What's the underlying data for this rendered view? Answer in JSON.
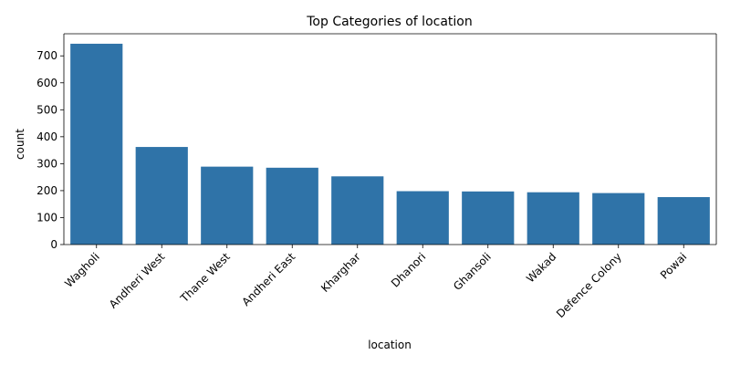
{
  "chart_data": {
    "type": "bar",
    "title": "Top Categories of location",
    "xlabel": "location",
    "ylabel": "count",
    "categories": [
      "Wagholi",
      "Andheri West",
      "Thane West",
      "Andheri East",
      "Kharghar",
      "Dhanori",
      "Ghansoli",
      "Wakad",
      "Defence Colony",
      "Powai"
    ],
    "values": [
      745,
      362,
      289,
      285,
      253,
      198,
      197,
      194,
      191,
      176
    ],
    "ylim": [
      0,
      782
    ],
    "yticks": [
      0,
      100,
      200,
      300,
      400,
      500,
      600,
      700
    ],
    "grid": false,
    "bar_color": "#2f73a8",
    "xtick_rotation": 45
  }
}
